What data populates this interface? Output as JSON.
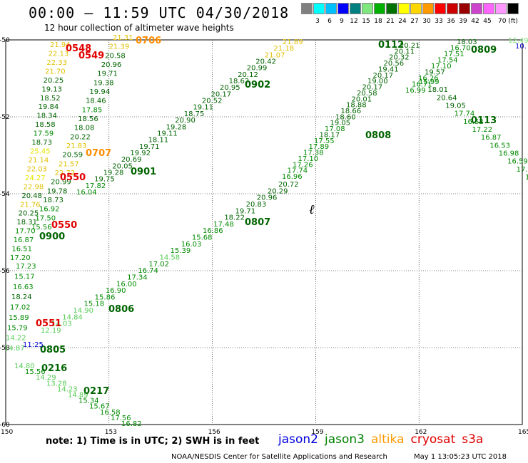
{
  "header": {
    "title": "00:00 – 11:59 UTC 04/30/2018",
    "subtitle": "12 hour collection of altimeter wave heights"
  },
  "color_scale": {
    "unit_label": "70 (ft)",
    "swatches": [
      {
        "color": "#808080",
        "label": ""
      },
      {
        "color": "#00ffff",
        "label": "3"
      },
      {
        "color": "#00bfff",
        "label": "6"
      },
      {
        "color": "#0000ff",
        "label": "9"
      },
      {
        "color": "#008080",
        "label": "12"
      },
      {
        "color": "#7ee87e",
        "label": "15"
      },
      {
        "color": "#00b000",
        "label": "18"
      },
      {
        "color": "#007000",
        "label": "21"
      },
      {
        "color": "#ffff00",
        "label": "24"
      },
      {
        "color": "#ffd700",
        "label": "27"
      },
      {
        "color": "#ff9900",
        "label": "30"
      },
      {
        "color": "#ff0000",
        "label": "33"
      },
      {
        "color": "#cc0000",
        "label": "36"
      },
      {
        "color": "#990000",
        "label": "39"
      },
      {
        "color": "#cc44cc",
        "label": "42"
      },
      {
        "color": "#ff66ff",
        "label": "45"
      },
      {
        "color": "#ff99ff",
        "label": "70 (ft)"
      },
      {
        "color": "#000000",
        "label": ""
      }
    ]
  },
  "map": {
    "lon_range": [
      150,
      165
    ],
    "lat_range": [
      -60,
      -50
    ],
    "lon_ticks": [
      "150",
      "153",
      "156",
      "159",
      "162",
      "165"
    ],
    "lat_ticks": [
      "-50",
      "-52",
      "-54",
      "-56",
      "-58",
      "-60"
    ],
    "grid": true,
    "tracks": [
      {
        "id": "track-0902",
        "heights": [
          "21.89",
          "21.18",
          "21.07",
          "20.42",
          "20.99",
          "20.12",
          "18.62",
          "20.95",
          "20.17",
          "20.52",
          "19.11",
          "18.75",
          "20.90",
          "19.28",
          "19.11",
          "18.11",
          "19.71",
          "19.92",
          "20.69",
          "20.05",
          "19.28",
          "19.75",
          "17.82",
          "16.04"
        ]
      },
      {
        "id": "track-0807",
        "heights": [
          "20.72",
          "20.29",
          "20.96",
          "20.83",
          "19.71",
          "18.22",
          "17.48",
          "16.86",
          "15.68",
          "16.03",
          "15.39",
          "14.58",
          "17.02",
          "16.74",
          "17.34",
          "16.00",
          "16.90",
          "15.86",
          "15.18",
          "14.90",
          "14.84",
          "14.03",
          "12.19"
        ]
      },
      {
        "id": "track-0808",
        "heights": [
          "20.21",
          "20.11",
          "20.32",
          "20.56",
          "19.41",
          "20.17",
          "19.00",
          "20.17",
          "20.58",
          "20.01",
          "18.88",
          "18.66",
          "18.60",
          "19.05",
          "17.08",
          "18.17",
          "17.55",
          "17.89",
          "17.38",
          "17.10",
          "17.26",
          "17.74",
          "16.96"
        ]
      },
      {
        "id": "track-0113",
        "heights": [
          "15.99",
          "18.01",
          "20.64",
          "19.05",
          "17.74",
          "16.52",
          "17.22",
          "16.87",
          "16.53",
          "16.98",
          "16.59",
          "17.38",
          "17.51"
        ]
      },
      {
        "id": "track-0809",
        "heights": [
          "18.03",
          "16.70",
          "17.51",
          "17.54",
          "17.10",
          "19.57",
          "16.26",
          "16.71",
          "16.99"
        ]
      },
      {
        "id": "track-0548",
        "heights": [
          "21.94",
          "22.13",
          "22.33",
          "21.70",
          "20.25",
          "19.13",
          "18.52",
          "19.84",
          "18.34",
          "18.58",
          "17.59",
          "18.73",
          "25.45",
          "21.14",
          "22.03",
          "24.27",
          "22.98",
          "20.48",
          "21.76",
          "20.25",
          "18.31",
          "17.70",
          "16.87",
          "16.51",
          "17.20"
        ]
      },
      {
        "id": "track-0706",
        "heights": [
          "21.31",
          "21.39",
          "20.58",
          "20.96",
          "19.71",
          "19.38",
          "19.94",
          "18.46",
          "17.85",
          "18.56",
          "18.08",
          "20.22",
          "21.83",
          "20.59",
          "21.57",
          "22.72",
          "20.99",
          "19.78",
          "18.73",
          "16.92",
          "17.50",
          "15.56"
        ]
      },
      {
        "id": "track-0551",
        "heights": [
          "17.23",
          "15.17",
          "16.63",
          "18.24",
          "17.02",
          "15.89",
          "15.79",
          "14.22",
          "14.87"
        ]
      },
      {
        "id": "track-0216",
        "heights": [
          "14.80",
          "15.56",
          "14.29",
          "13.28",
          "14.23",
          "14.89",
          "15.34",
          "15.67",
          "16.58",
          "17.56",
          "16.82"
        ]
      }
    ],
    "track_labels": [
      {
        "text": "0706",
        "color": "#ff8c00"
      },
      {
        "text": "0548",
        "color": "#e00000"
      },
      {
        "text": "0549",
        "color": "#e00000"
      },
      {
        "text": "0112",
        "color": "#006400"
      },
      {
        "text": "0809",
        "color": "#006400"
      },
      {
        "text": "0902",
        "color": "#006400"
      },
      {
        "text": "0113",
        "color": "#006400"
      },
      {
        "text": "0808",
        "color": "#006400"
      },
      {
        "text": "0707",
        "color": "#ff8c00"
      },
      {
        "text": "0901",
        "color": "#006400"
      },
      {
        "text": "0550",
        "color": "#e00000"
      },
      {
        "text": "0550",
        "color": "#e00000"
      },
      {
        "text": "0807",
        "color": "#006400"
      },
      {
        "text": "0900",
        "color": "#006400"
      },
      {
        "text": "0806",
        "color": "#006400"
      },
      {
        "text": "0551",
        "color": "#e00000"
      },
      {
        "text": "0805",
        "color": "#006400"
      },
      {
        "text": "0216",
        "color": "#006400"
      },
      {
        "text": "0217",
        "color": "#006400"
      },
      {
        "text": "11:25",
        "color": "#0000cc"
      },
      {
        "text": "12.49",
        "color": "#7ee87e"
      },
      {
        "text": "10.",
        "color": "#0000cc"
      }
    ]
  },
  "footer": {
    "note": "note: 1) Time is in UTC; 2) SWH is in feet",
    "satellites": [
      {
        "name": "jason2",
        "color": "#0000dd"
      },
      {
        "name": "jason3",
        "color": "#008000"
      },
      {
        "name": "altika",
        "color": "#ff9900"
      },
      {
        "name": "cryosat",
        "color": "#dd0000"
      },
      {
        "name": "s3a",
        "color": "#dd0000"
      }
    ],
    "credit": "NOAA/NESDIS Center for Satellite Applications and Research",
    "timestamp": "May  1 13:05:23 UTC 2018"
  }
}
